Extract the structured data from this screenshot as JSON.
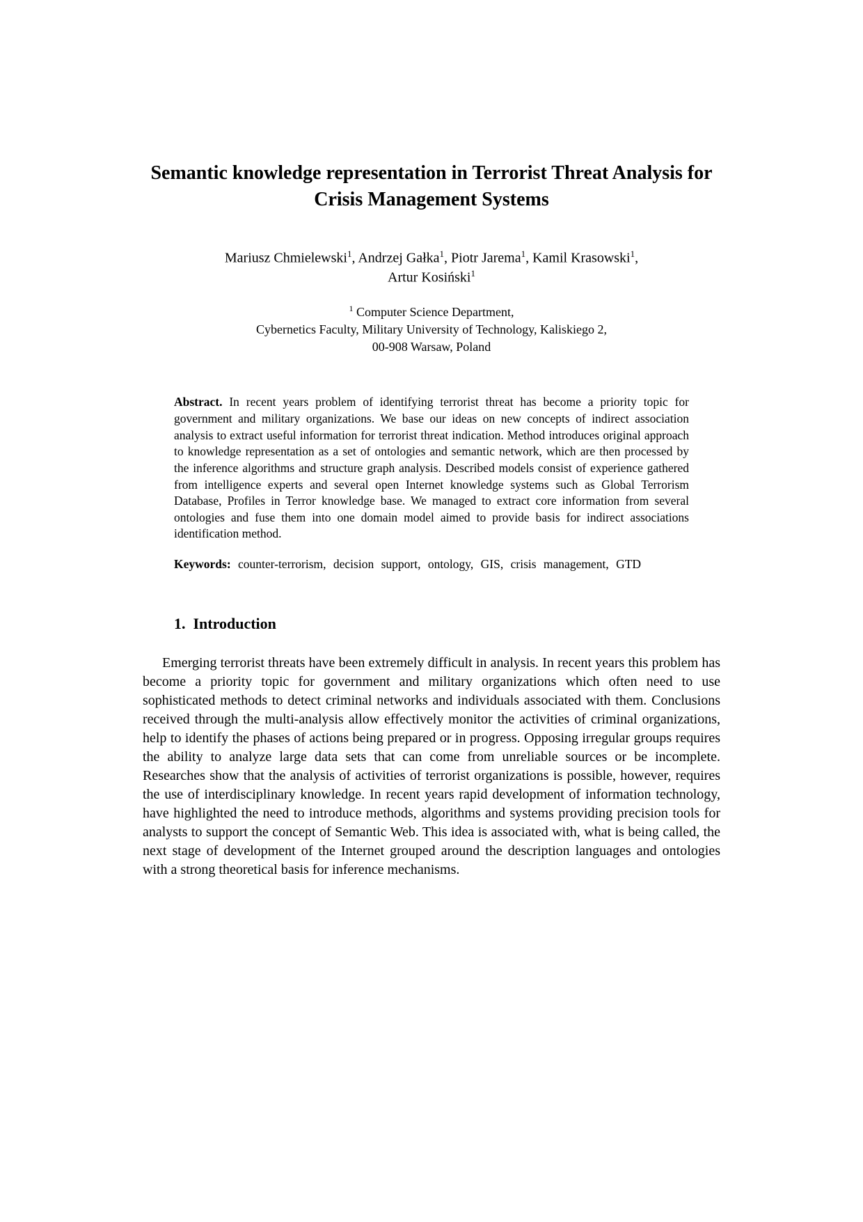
{
  "title": "Semantic knowledge representation in Terrorist Threat Analysis for Crisis Management Systems",
  "authors": {
    "line1_parts": [
      {
        "name": "Mariusz Chmielewski",
        "sup": "1"
      },
      {
        "name": "Andrzej Gałka",
        "sup": "1"
      },
      {
        "name": "Piotr Jarema",
        "sup": "1"
      },
      {
        "name": "Kamil Krasowski",
        "sup": "1"
      }
    ],
    "line2_parts": [
      {
        "name": "Artur Kosiński",
        "sup": "1"
      }
    ]
  },
  "affiliation": {
    "sup": "1",
    "line1": " Computer Science Department,",
    "line2": "Cybernetics Faculty, Military University of Technology, Kaliskiego 2,",
    "line3": "00-908 Warsaw, Poland"
  },
  "abstract": {
    "label": "Abstract.",
    "text": " In recent years problem of identifying terrorist threat has become a priority topic for government and military organizations. We base our ideas on new concepts of indirect association analysis to extract useful information for terrorist threat indication. Method introduces original approach to knowledge representation as a set of ontologies and semantic network, which are then processed by the inference algorithms and structure graph analysis. Described models consist of experience gathered from  intelligence experts and several open Internet knowledge systems such as Global Terrorism Database, Profiles in Terror knowledge base. We managed to extract core information from several ontologies and fuse them into one domain model aimed to provide basis for indirect associations identification method."
  },
  "keywords": {
    "label": "Keywords:",
    "text": " counter-terrorism, decision support, ontology, GIS, crisis management, GTD"
  },
  "section": {
    "number": "1.",
    "title": "Introduction"
  },
  "body": "Emerging terrorist threats have been extremely difficult in analysis. In recent years this problem has become a priority topic for government and military organizations which often need to use sophisticated methods to detect criminal networks and individuals associated with them. Conclusions received through the multi-analysis allow effectively monitor the activities of criminal organizations, help to identify the phases of actions being  prepared or in progress. Opposing irregular groups requires the ability to analyze large data sets that can come from unreliable sources or be incomplete. Researches show that the analysis of activities of terrorist organizations is possible, however, requires the use of interdisciplinary knowledge. In recent years rapid development of information technology, have highlighted the need to introduce  methods, algorithms and systems providing precision tools for analysts to support the concept of Semantic Web. This idea is associated with, what is being called, the next stage of development of the Internet grouped around the description languages and ontologies with a strong theoretical basis for inference mechanisms.",
  "colors": {
    "background": "#ffffff",
    "text": "#000000"
  },
  "typography": {
    "title_fontsize": 28,
    "authors_fontsize": 20,
    "affiliation_fontsize": 18,
    "abstract_fontsize": 17.5,
    "heading_fontsize": 22,
    "body_fontsize": 20,
    "font_family": "Times New Roman"
  }
}
